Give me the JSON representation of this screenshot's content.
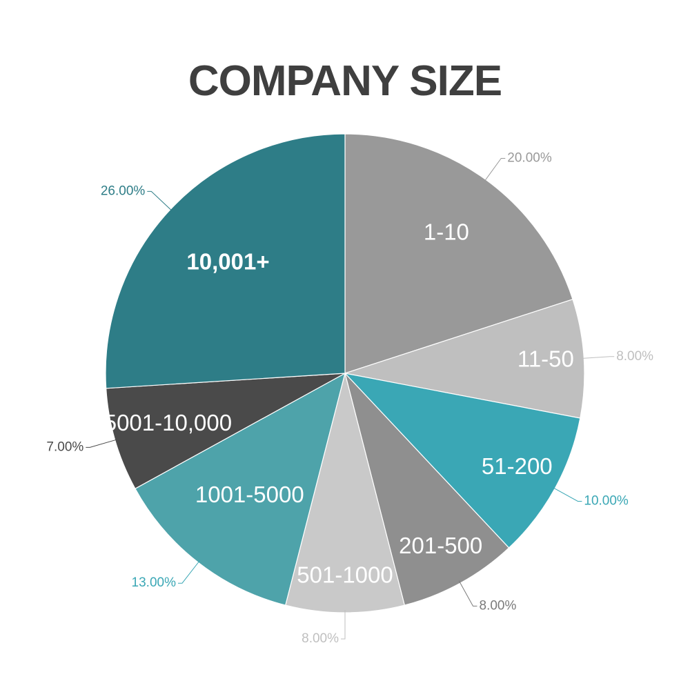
{
  "chart_data": {
    "type": "pie",
    "title": "COMPANY SIZE",
    "categories": [
      "1-10",
      "11-50",
      "51-200",
      "201-500",
      "501-1000",
      "1001-5000",
      "5001-10,000",
      "10,001+"
    ],
    "values": [
      20,
      8,
      10,
      8,
      8,
      13,
      7,
      26
    ],
    "value_labels": [
      "20.00%",
      "8.00%",
      "10.00%",
      "8.00%",
      "8.00%",
      "13.00%",
      "7.00%",
      "26.00%"
    ],
    "colors": [
      "#999999",
      "#bfbfbf",
      "#3aa7b5",
      "#8f8f8f",
      "#c9c9c9",
      "#4ea3aa",
      "#4a4a4a",
      "#2e7d87"
    ],
    "value_label_colors": [
      "#999999",
      "#bfbfbf",
      "#3aa7b5",
      "#7a7a7a",
      "#bfbfbf",
      "#3aa7b5",
      "#4a4a4a",
      "#2e7d87"
    ],
    "bold_labels": [
      "10,001+"
    ],
    "start_angle": "12 o'clock",
    "direction": "clockwise"
  }
}
